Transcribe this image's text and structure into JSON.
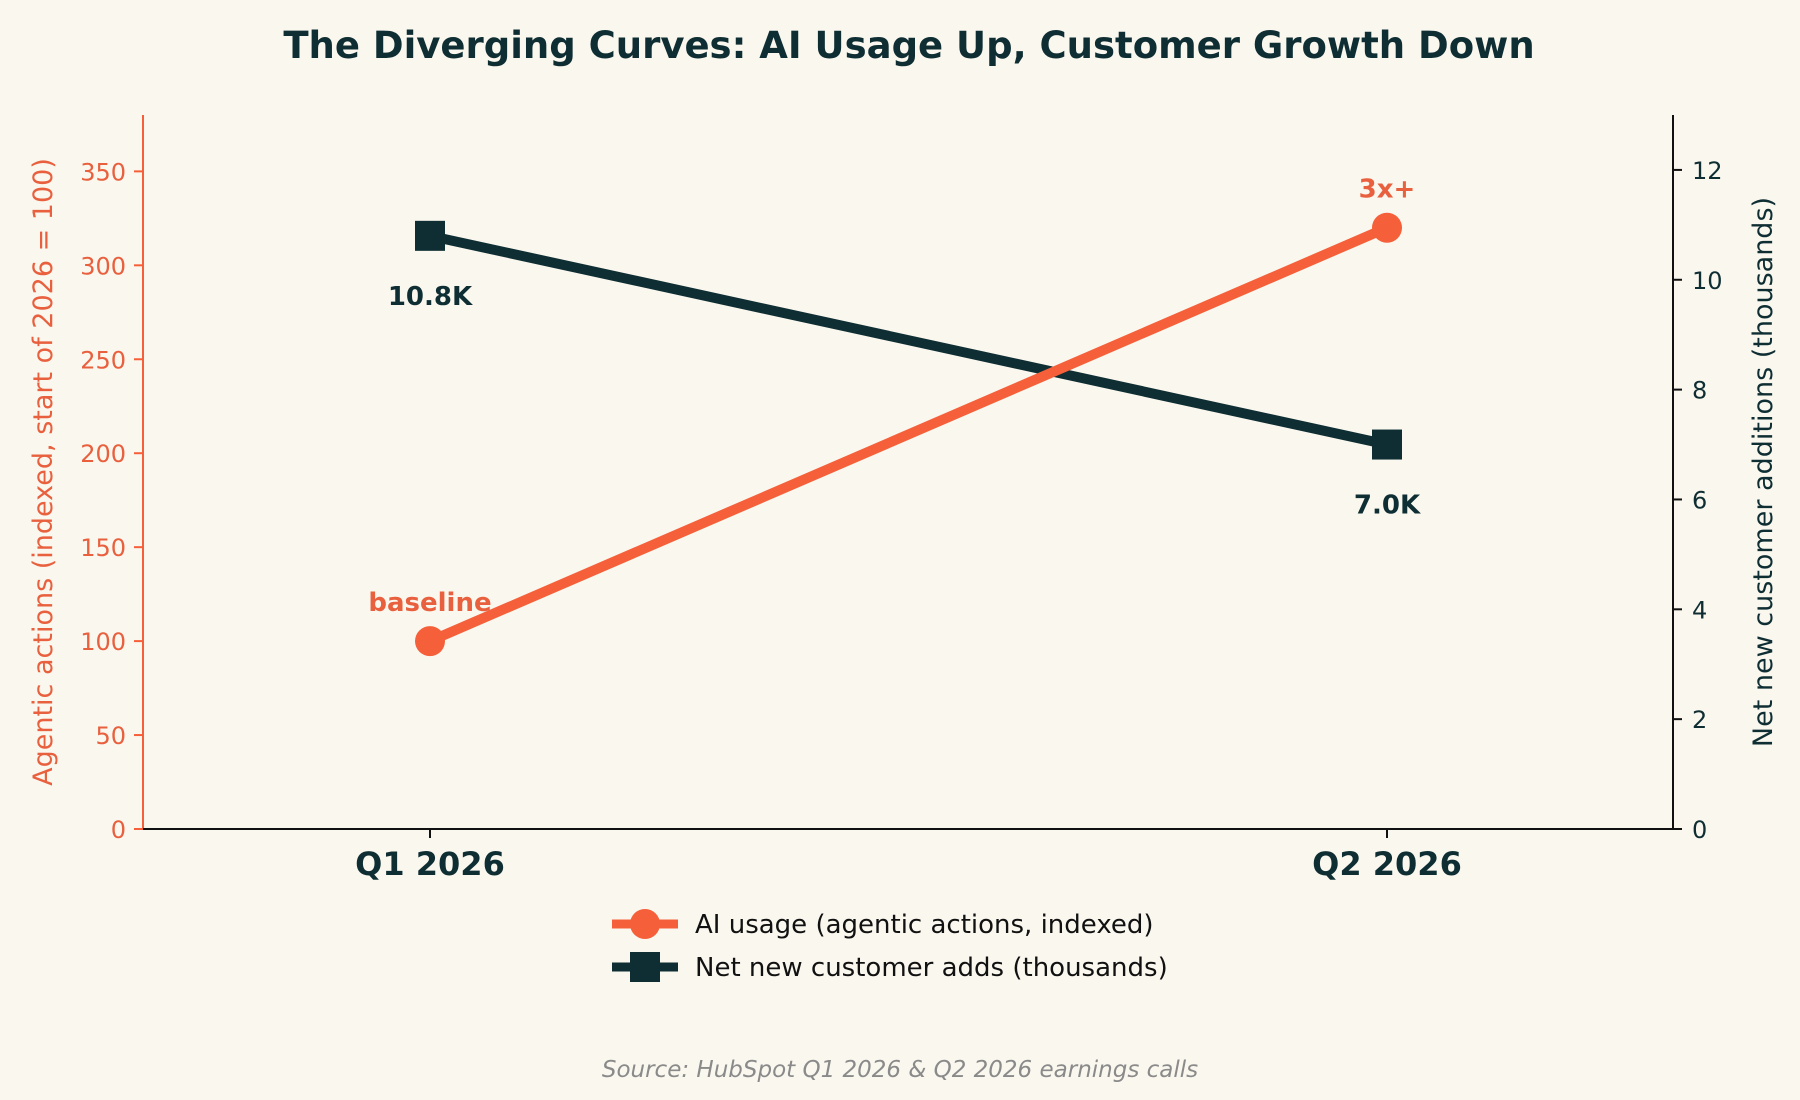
{
  "title": "The Diverging Curves: AI Usage Up, Customer Growth Down",
  "source": "Source: HubSpot Q1 2026 & Q2 2026 earnings calls",
  "colors": {
    "background": "#faf7ee",
    "ai": "#f5603a",
    "ai_text": "#e8603e",
    "customer": "#0e2e33",
    "axis": "#111111",
    "source_text": "#8a8a8a"
  },
  "chart_data": {
    "type": "line",
    "categories": [
      "Q1 2026",
      "Q2 2026"
    ],
    "ylabel_left": "Agentic actions (indexed, start of 2026 = 100)",
    "ylabel_right": "Net new customer additions (thousands)",
    "ylim_left": [
      0,
      380
    ],
    "ylim_right": [
      0,
      13
    ],
    "yticks_left": [
      0,
      50,
      100,
      150,
      200,
      250,
      300,
      350
    ],
    "yticks_right": [
      0,
      2,
      4,
      6,
      8,
      10,
      12
    ],
    "grid": false,
    "legend_position": "bottom-center",
    "series": [
      {
        "name": "AI usage (agentic actions, indexed)",
        "axis": "left",
        "marker": "circle",
        "values": [
          100,
          320
        ],
        "annotations": [
          "baseline",
          "3x+"
        ]
      },
      {
        "name": "Net new customer adds (thousands)",
        "axis": "right",
        "marker": "square",
        "values": [
          10.8,
          7.0
        ],
        "annotations": [
          "10.8K",
          "7.0K"
        ]
      }
    ]
  }
}
